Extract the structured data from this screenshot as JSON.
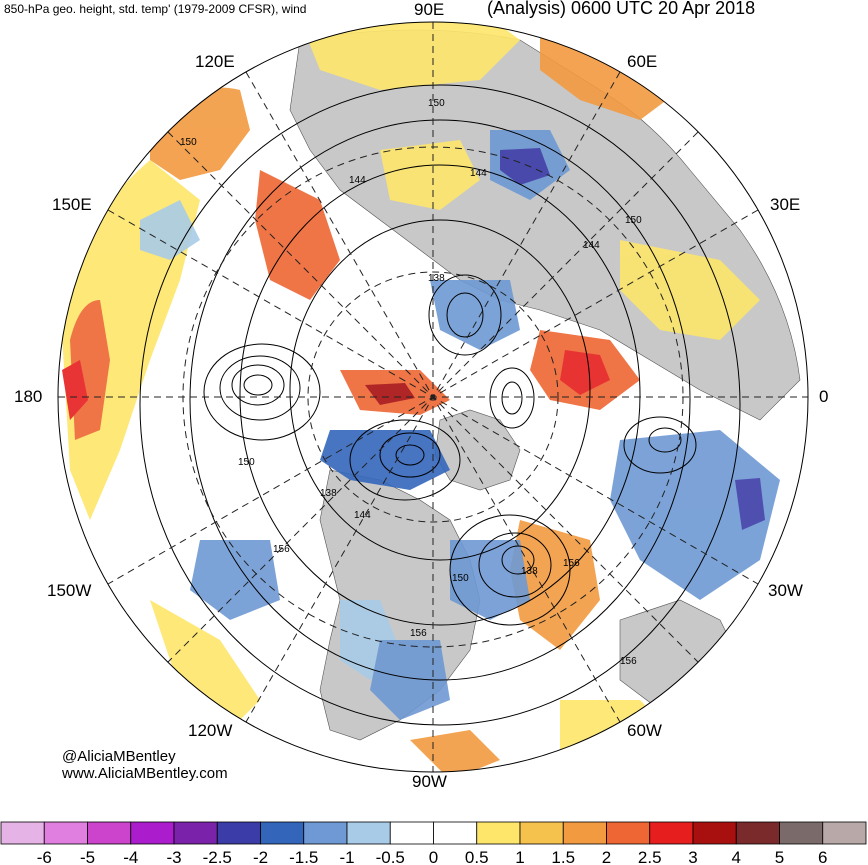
{
  "header": {
    "left_title": "850-hPa geo. height, std. temp' (1979-2009 CFSR), wind",
    "right_title": "(Analysis) 0600 UTC 20 Apr 2018"
  },
  "longitude_labels": {
    "lon_90e": "90E",
    "lon_120e": "120E",
    "lon_60e": "60E",
    "lon_150e": "150E",
    "lon_30e": "30E",
    "lon_180": "180",
    "lon_0": "0",
    "lon_150w": "150W",
    "lon_30w": "30W",
    "lon_120w": "120W",
    "lon_60w": "60W",
    "lon_90w": "90W"
  },
  "contour_labels": [
    "150",
    "150",
    "144",
    "144",
    "150",
    "144",
    "138",
    "150",
    "138",
    "144",
    "156",
    "150",
    "138",
    "156",
    "156",
    "156"
  ],
  "credits": {
    "twitter": "@AliciaMBentley",
    "website": "www.AliciaMBentley.com"
  },
  "colorbar": {
    "colors": [
      "#e6b3e6",
      "#e07fe0",
      "#cc44cc",
      "#aa1ccc",
      "#7a22aa",
      "#3c3ca8",
      "#3366bb",
      "#6e99d4",
      "#a8cbe8",
      "#ffffff",
      "#ffffff",
      "#fde66a",
      "#f6c24e",
      "#f29a3f",
      "#ee6633",
      "#e61e1e",
      "#a80f0f",
      "#7a2a2a",
      "#7a6a6a",
      "#b8a8a8"
    ],
    "tick_labels": [
      "-6",
      "-5",
      "-4",
      "-3",
      "-2.5",
      "-2",
      "-1.5",
      "-1",
      "-0.5",
      "0",
      "0.5",
      "1",
      "1.5",
      "2",
      "2.5",
      "3",
      "4",
      "5",
      "6"
    ]
  },
  "colors": {
    "land_mask": "#c8c8c8",
    "warm_anomaly": "#ee6633",
    "cold_anomaly": "#3366bb",
    "contour": "#000000"
  }
}
